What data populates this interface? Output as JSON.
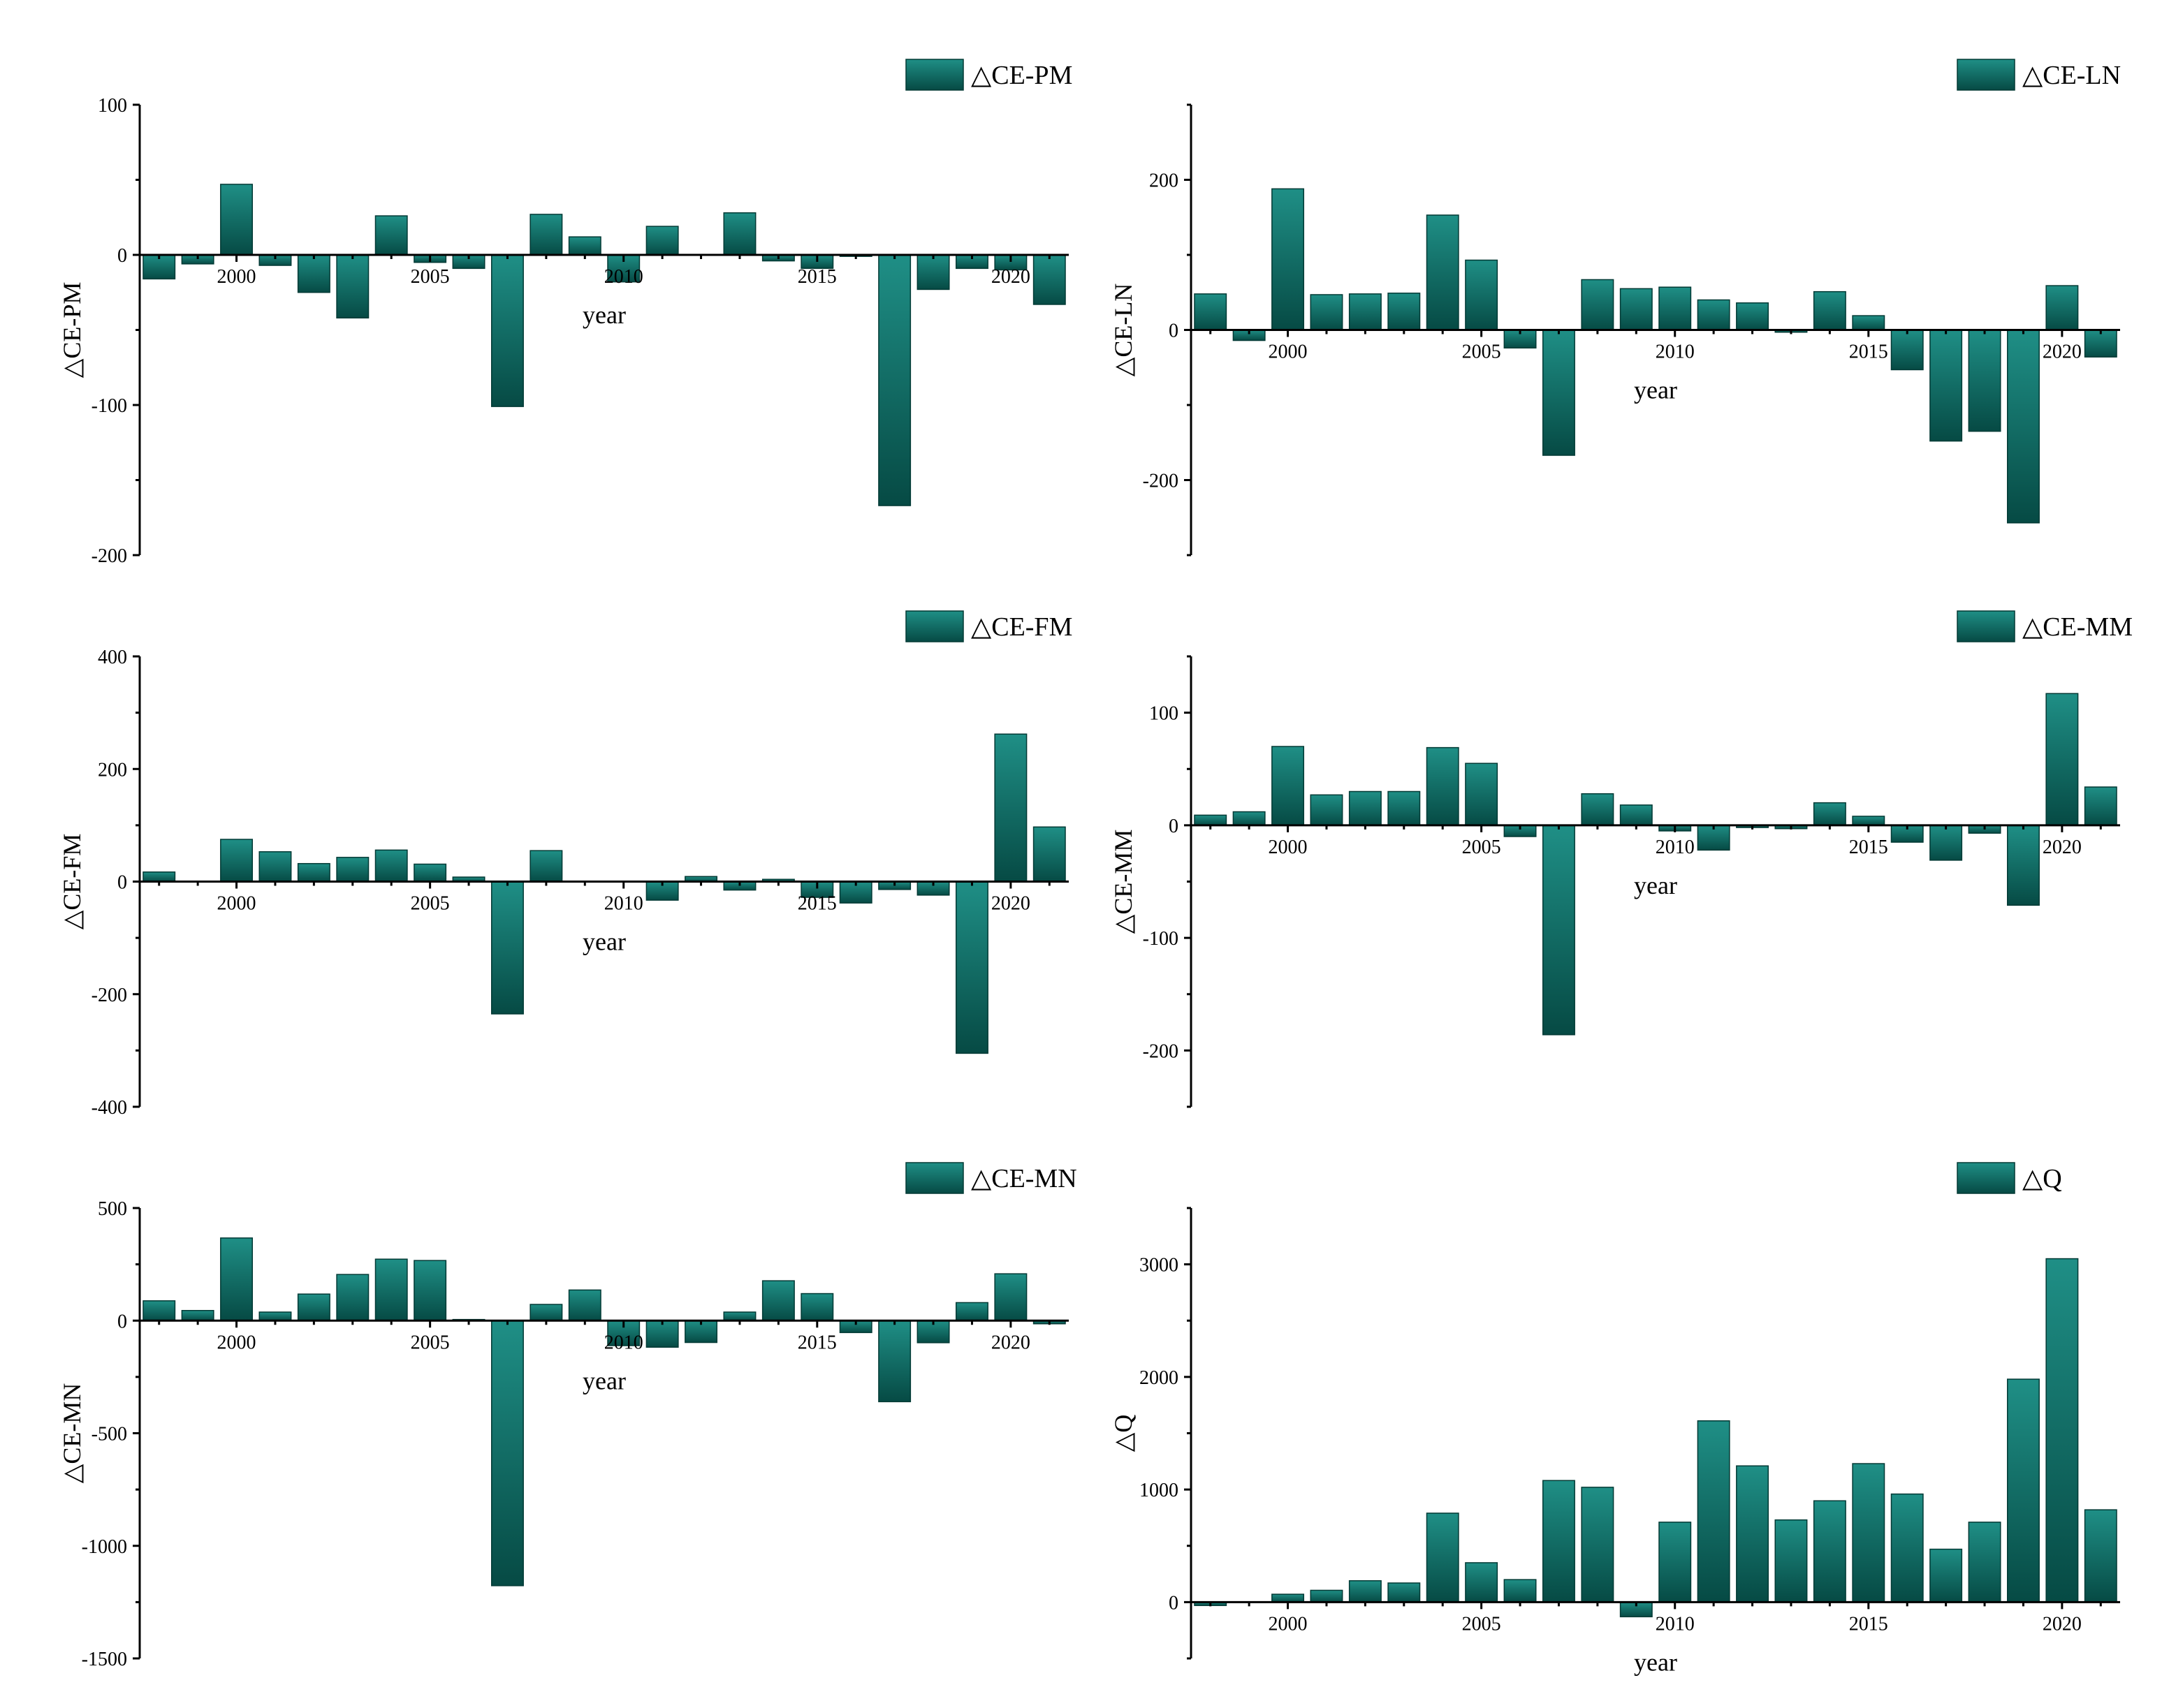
{
  "chart_data": [
    {
      "type": "bar",
      "id": "ce-pm",
      "legend": "△CE-PM",
      "ylabel": "△CE-PM",
      "xlabel": "year",
      "ylim": [
        -200,
        100
      ],
      "yticks": [
        -200,
        -100,
        0,
        100
      ],
      "xticks": [
        2000,
        2005,
        2010,
        2015,
        2020
      ],
      "categories": [
        1998,
        1999,
        2000,
        2001,
        2002,
        2003,
        2004,
        2005,
        2006,
        2007,
        2008,
        2009,
        2010,
        2011,
        2012,
        2013,
        2014,
        2015,
        2016,
        2017,
        2018,
        2019,
        2020,
        2021
      ],
      "values": [
        -16,
        -6,
        47,
        -7,
        -25,
        -42,
        26,
        -5,
        -9,
        -101,
        27,
        12,
        -18,
        19,
        0,
        28,
        -4,
        -9,
        -1,
        -167,
        -23,
        -9,
        -10,
        -33
      ]
    },
    {
      "type": "bar",
      "id": "ce-ln",
      "legend": "△CE-LN",
      "ylabel": "△CE-LN",
      "xlabel": "year",
      "ylim": [
        -300,
        300
      ],
      "yticks": [
        -200,
        0,
        200
      ],
      "xticks": [
        2000,
        2005,
        2010,
        2015,
        2020
      ],
      "categories": [
        1998,
        1999,
        2000,
        2001,
        2002,
        2003,
        2004,
        2005,
        2006,
        2007,
        2008,
        2009,
        2010,
        2011,
        2012,
        2013,
        2014,
        2015,
        2016,
        2017,
        2018,
        2019,
        2020,
        2021
      ],
      "values": [
        48,
        -14,
        188,
        47,
        48,
        49,
        153,
        93,
        -24,
        -167,
        67,
        55,
        57,
        40,
        36,
        -3,
        51,
        19,
        -53,
        -148,
        -135,
        -257,
        59,
        -36
      ]
    },
    {
      "type": "bar",
      "id": "ce-fm",
      "legend": "△CE-FM",
      "ylabel": "△CE-FM",
      "xlabel": "year",
      "ylim": [
        -400,
        400
      ],
      "yticks": [
        -400,
        -200,
        0,
        200,
        400
      ],
      "xticks": [
        2000,
        2005,
        2010,
        2015,
        2020
      ],
      "categories": [
        1998,
        1999,
        2000,
        2001,
        2002,
        2003,
        2004,
        2005,
        2006,
        2007,
        2008,
        2009,
        2010,
        2011,
        2012,
        2013,
        2014,
        2015,
        2016,
        2017,
        2018,
        2019,
        2020,
        2021
      ],
      "values": [
        17,
        0,
        75,
        53,
        32,
        43,
        56,
        31,
        8,
        -235,
        55,
        0,
        0,
        -33,
        9,
        -15,
        4,
        -28,
        -38,
        -14,
        -24,
        -305,
        262,
        97
      ]
    },
    {
      "type": "bar",
      "id": "ce-mm",
      "legend": "△CE-MM",
      "ylabel": "△CE-MM",
      "xlabel": "year",
      "ylim": [
        -250,
        150
      ],
      "yticks": [
        -200,
        -100,
        0,
        100
      ],
      "xticks": [
        2000,
        2005,
        2010,
        2015,
        2020
      ],
      "categories": [
        1998,
        1999,
        2000,
        2001,
        2002,
        2003,
        2004,
        2005,
        2006,
        2007,
        2008,
        2009,
        2010,
        2011,
        2012,
        2013,
        2014,
        2015,
        2016,
        2017,
        2018,
        2019,
        2020,
        2021
      ],
      "values": [
        9,
        12,
        70,
        27,
        30,
        30,
        69,
        55,
        -10,
        -186,
        28,
        18,
        -5,
        -22,
        -2,
        -3,
        20,
        8,
        -15,
        -31,
        -7,
        -71,
        117,
        34
      ]
    },
    {
      "type": "bar",
      "id": "ce-mn",
      "legend": "△CE-MN",
      "ylabel": "△CE-MN",
      "xlabel": "year",
      "ylim": [
        -1500,
        500
      ],
      "yticks": [
        -1500,
        -1000,
        -500,
        0,
        500
      ],
      "xticks": [
        2000,
        2005,
        2010,
        2015,
        2020
      ],
      "categories": [
        1998,
        1999,
        2000,
        2001,
        2002,
        2003,
        2004,
        2005,
        2006,
        2007,
        2008,
        2009,
        2010,
        2011,
        2012,
        2013,
        2014,
        2015,
        2016,
        2017,
        2018,
        2019,
        2020,
        2021
      ],
      "values": [
        88,
        45,
        367,
        38,
        118,
        205,
        273,
        267,
        5,
        -1177,
        72,
        136,
        -111,
        -118,
        -97,
        38,
        177,
        120,
        -53,
        -360,
        -98,
        80,
        208,
        -14
      ]
    },
    {
      "type": "bar",
      "id": "q",
      "legend": "△Q",
      "ylabel": "△Q",
      "xlabel": "year",
      "ylim": [
        -500,
        3500
      ],
      "yticks": [
        0,
        1000,
        2000,
        3000
      ],
      "xticks": [
        2000,
        2005,
        2010,
        2015,
        2020
      ],
      "categories": [
        1998,
        1999,
        2000,
        2001,
        2002,
        2003,
        2004,
        2005,
        2006,
        2007,
        2008,
        2009,
        2010,
        2011,
        2012,
        2013,
        2014,
        2015,
        2016,
        2017,
        2018,
        2019,
        2020,
        2021
      ],
      "values": [
        -30,
        0,
        70,
        105,
        190,
        170,
        790,
        350,
        200,
        1080,
        1020,
        -130,
        710,
        1610,
        1210,
        730,
        900,
        1230,
        960,
        470,
        710,
        1980,
        3050,
        820
      ]
    }
  ],
  "colors": {
    "bar_top": "#1f8f86",
    "bar_bottom": "#064a44",
    "bar_edge": "#033a35",
    "axis": "#000000"
  }
}
